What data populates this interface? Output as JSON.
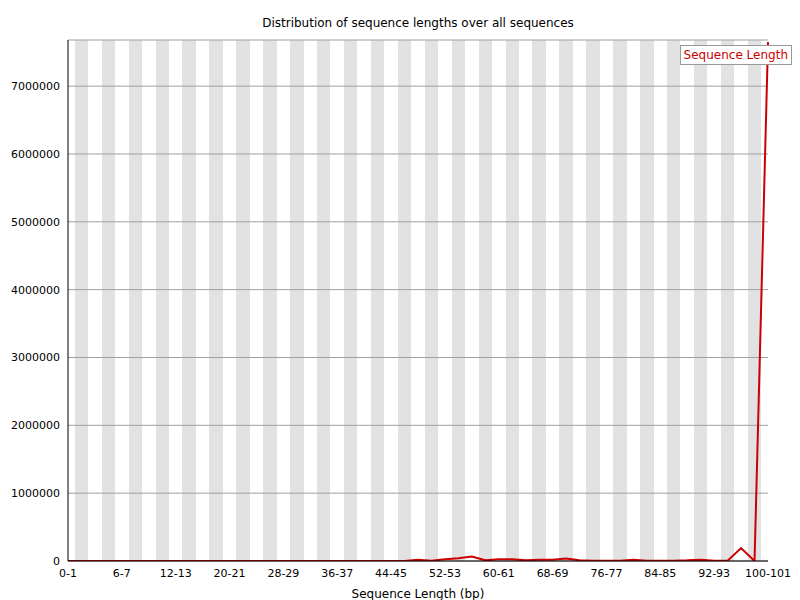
{
  "chart_data": {
    "type": "line",
    "title": "Distribution of sequence lengths over all sequences",
    "x_label": "Sequence Length (bp)",
    "categories": [
      "0-1",
      null,
      null,
      null,
      "6-7",
      null,
      null,
      null,
      "12-13",
      null,
      null,
      null,
      "20-21",
      null,
      null,
      null,
      "28-29",
      null,
      null,
      null,
      "36-37",
      null,
      null,
      null,
      "44-45",
      null,
      null,
      null,
      "52-53",
      null,
      null,
      null,
      "60-61",
      null,
      null,
      null,
      "68-69",
      null,
      null,
      null,
      "76-77",
      null,
      null,
      null,
      "84-85",
      null,
      null,
      null,
      "92-93",
      null,
      null,
      null,
      "100-101"
    ],
    "series": [
      {
        "name": "Sequence Length",
        "color": "#cc0000",
        "values": [
          0,
          0,
          0,
          0,
          0,
          0,
          0,
          0,
          0,
          0,
          0,
          0,
          0,
          0,
          0,
          0,
          0,
          0,
          0,
          0,
          0,
          0,
          0,
          0,
          0,
          0,
          20000,
          5000,
          25000,
          40000,
          65000,
          10000,
          25000,
          25000,
          10000,
          20000,
          20000,
          35000,
          10000,
          5000,
          5000,
          5000,
          20000,
          5000,
          5000,
          5000,
          10000,
          20000,
          5000,
          5000,
          190000,
          0,
          7650000
        ]
      }
    ],
    "ylim": [
      0,
      7680000
    ],
    "yticks": [
      0,
      1000000,
      2000000,
      3000000,
      4000000,
      5000000,
      6000000,
      7000000
    ],
    "grid": true,
    "legend": "top right"
  }
}
